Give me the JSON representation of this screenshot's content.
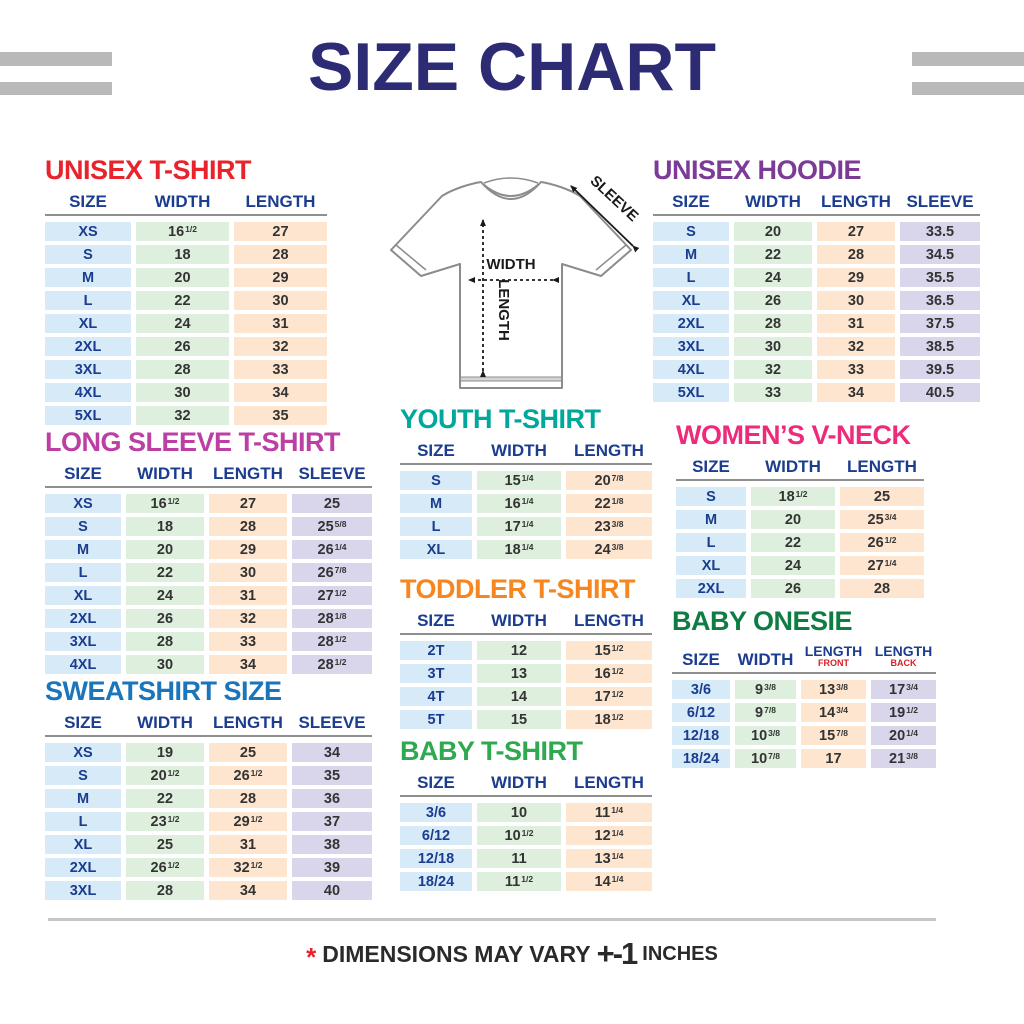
{
  "header": {
    "title": "SIZE CHART"
  },
  "diagram": {
    "width_label": "WIDTH",
    "length_label": "LENGTH",
    "sleeve_label": "SLEEVE"
  },
  "footer": {
    "asterisk": "*",
    "text": "DIMENSIONS MAY VARY",
    "tolerance": "+-1",
    "unit": "INCHES"
  },
  "colors": {
    "title_navy": "#2d2b74",
    "header_text": "#1b3c8f",
    "size_cell": "#d6eaf7",
    "width_cell": "#deefde",
    "length_cell": "#fde5cf",
    "sleeve_cell": "#d9d6ec",
    "stripe_gray": "#b9b9b9"
  },
  "tables": [
    {
      "name": "unisex-tshirt",
      "title": "UNISEX T-SHIRT",
      "title_color": "#e8232b",
      "columns": [
        {
          "label": "SIZE",
          "type": "size"
        },
        {
          "label": "WIDTH",
          "type": "width"
        },
        {
          "label": "LENGTH",
          "type": "length"
        }
      ],
      "rows": [
        [
          "XS",
          "16|1/2",
          "27"
        ],
        [
          "S",
          "18",
          "28"
        ],
        [
          "M",
          "20",
          "29"
        ],
        [
          "L",
          "22",
          "30"
        ],
        [
          "XL",
          "24",
          "31"
        ],
        [
          "2XL",
          "26",
          "32"
        ],
        [
          "3XL",
          "28",
          "33"
        ],
        [
          "4XL",
          "30",
          "34"
        ],
        [
          "5XL",
          "32",
          "35"
        ]
      ]
    },
    {
      "name": "unisex-hoodie",
      "title": "UNISEX HOODIE",
      "title_color": "#7b3b97",
      "columns": [
        {
          "label": "SIZE",
          "type": "size"
        },
        {
          "label": "WIDTH",
          "type": "width"
        },
        {
          "label": "LENGTH",
          "type": "length"
        },
        {
          "label": "SLEEVE",
          "type": "sleeve"
        }
      ],
      "rows": [
        [
          "S",
          "20",
          "27",
          "33.5"
        ],
        [
          "M",
          "22",
          "28",
          "34.5"
        ],
        [
          "L",
          "24",
          "29",
          "35.5"
        ],
        [
          "XL",
          "26",
          "30",
          "36.5"
        ],
        [
          "2XL",
          "28",
          "31",
          "37.5"
        ],
        [
          "3XL",
          "30",
          "32",
          "38.5"
        ],
        [
          "4XL",
          "32",
          "33",
          "39.5"
        ],
        [
          "5XL",
          "33",
          "34",
          "40.5"
        ]
      ]
    },
    {
      "name": "long-sleeve",
      "title": "LONG SLEEVE T-SHIRT",
      "title_color": "#bc3fa4",
      "columns": [
        {
          "label": "SIZE",
          "type": "size"
        },
        {
          "label": "WIDTH",
          "type": "width"
        },
        {
          "label": "LENGTH",
          "type": "length"
        },
        {
          "label": "SLEEVE",
          "type": "sleeve"
        }
      ],
      "rows": [
        [
          "XS",
          "16|1/2",
          "27",
          "25"
        ],
        [
          "S",
          "18",
          "28",
          "25|5/8"
        ],
        [
          "M",
          "20",
          "29",
          "26|1/4"
        ],
        [
          "L",
          "22",
          "30",
          "26|7/8"
        ],
        [
          "XL",
          "24",
          "31",
          "27|1/2"
        ],
        [
          "2XL",
          "26",
          "32",
          "28|1/8"
        ],
        [
          "3XL",
          "28",
          "33",
          "28|1/2"
        ],
        [
          "4XL",
          "30",
          "34",
          "28|1/2"
        ]
      ]
    },
    {
      "name": "sweatshirt",
      "title": "SWEATSHIRT SIZE",
      "title_color": "#1b75bb",
      "columns": [
        {
          "label": "SIZE",
          "type": "size"
        },
        {
          "label": "WIDTH",
          "type": "width"
        },
        {
          "label": "LENGTH",
          "type": "length"
        },
        {
          "label": "SLEEVE",
          "type": "sleeve"
        }
      ],
      "rows": [
        [
          "XS",
          "19",
          "25",
          "34"
        ],
        [
          "S",
          "20|1/2",
          "26|1/2",
          "35"
        ],
        [
          "M",
          "22",
          "28",
          "36"
        ],
        [
          "L",
          "23|1/2",
          "29|1/2",
          "37"
        ],
        [
          "XL",
          "25",
          "31",
          "38"
        ],
        [
          "2XL",
          "26|1/2",
          "32|1/2",
          "39"
        ],
        [
          "3XL",
          "28",
          "34",
          "40"
        ]
      ]
    },
    {
      "name": "youth-tshirt",
      "title": "YOUTH T-SHIRT",
      "title_color": "#00a79b",
      "columns": [
        {
          "label": "SIZE",
          "type": "size"
        },
        {
          "label": "WIDTH",
          "type": "width"
        },
        {
          "label": "LENGTH",
          "type": "length"
        }
      ],
      "rows": [
        [
          "S",
          "15|1/4",
          "20|7/8"
        ],
        [
          "M",
          "16|1/4",
          "22|1/8"
        ],
        [
          "L",
          "17|1/4",
          "23|3/8"
        ],
        [
          "XL",
          "18|1/4",
          "24|3/8"
        ]
      ]
    },
    {
      "name": "toddler-tshirt",
      "title": "TODDLER T-SHIRT",
      "title_color": "#f6861f",
      "columns": [
        {
          "label": "SIZE",
          "type": "size"
        },
        {
          "label": "WIDTH",
          "type": "width"
        },
        {
          "label": "LENGTH",
          "type": "length"
        }
      ],
      "rows": [
        [
          "2T",
          "12",
          "15|1/2"
        ],
        [
          "3T",
          "13",
          "16|1/2"
        ],
        [
          "4T",
          "14",
          "17|1/2"
        ],
        [
          "5T",
          "15",
          "18|1/2"
        ]
      ]
    },
    {
      "name": "baby-tshirt",
      "title": "BABY T-SHIRT",
      "title_color": "#2fa94f",
      "columns": [
        {
          "label": "SIZE",
          "type": "size"
        },
        {
          "label": "WIDTH",
          "type": "width"
        },
        {
          "label": "LENGTH",
          "type": "length"
        }
      ],
      "rows": [
        [
          "3/6",
          "10",
          "11|1/4"
        ],
        [
          "6/12",
          "10|1/2",
          "12|1/4"
        ],
        [
          "12/18",
          "11",
          "13|1/4"
        ],
        [
          "18/24",
          "11|1/2",
          "14|1/4"
        ]
      ]
    },
    {
      "name": "womens-vneck",
      "title": "WOMEN’S V-NECK",
      "title_color": "#ee2a7b",
      "columns": [
        {
          "label": "SIZE",
          "type": "size"
        },
        {
          "label": "WIDTH",
          "type": "width"
        },
        {
          "label": "LENGTH",
          "type": "length"
        }
      ],
      "rows": [
        [
          "S",
          "18|1/2",
          "25"
        ],
        [
          "M",
          "20",
          "25|3/4"
        ],
        [
          "L",
          "22",
          "26|1/2"
        ],
        [
          "XL",
          "24",
          "27|1/4"
        ],
        [
          "2XL",
          "26",
          "28"
        ]
      ]
    },
    {
      "name": "baby-onesie",
      "title": "BABY ONESIE",
      "title_color": "#0f7c44",
      "columns": [
        {
          "label": "SIZE",
          "type": "size"
        },
        {
          "label": "WIDTH",
          "type": "width"
        },
        {
          "label": "LENGTH",
          "sub": "FRONT",
          "type": "length"
        },
        {
          "label": "LENGTH",
          "sub": "BACK",
          "type": "sleeve"
        }
      ],
      "rows": [
        [
          "3/6",
          "9|3/8",
          "13|3/8",
          "17|3/4"
        ],
        [
          "6/12",
          "9|7/8",
          "14|3/4",
          "19|1/2"
        ],
        [
          "12/18",
          "10|3/8",
          "15|7/8",
          "20|1/4"
        ],
        [
          "18/24",
          "10|7/8",
          "17",
          "21|3/8"
        ]
      ]
    }
  ]
}
